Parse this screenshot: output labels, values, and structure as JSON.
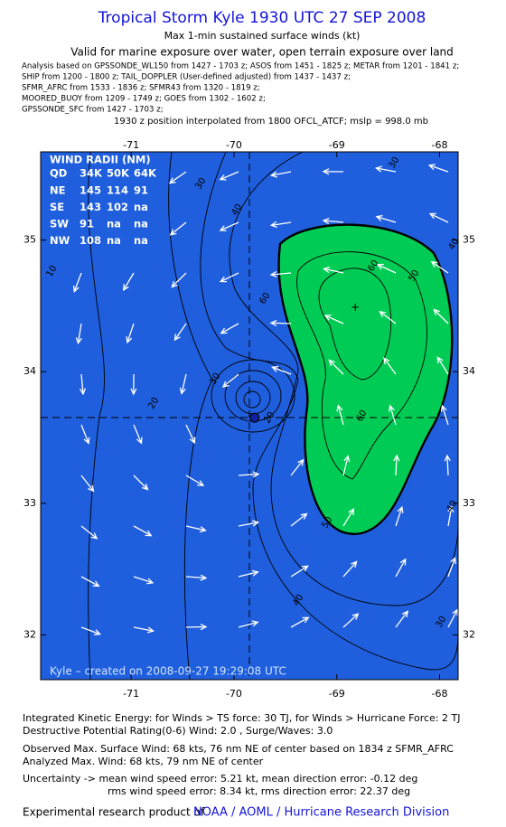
{
  "header": {
    "title": "Tropical Storm Kyle 1930 UTC 27 SEP 2008",
    "subtitle": "Max 1-min sustained surface winds (kt)",
    "validity": "Valid for marine exposure over water, open terrain exposure over land",
    "analysis_lines": [
      "Analysis based on  GPSSONDE_WL150 from 1427 - 1703 z;  ASOS from 1451 - 1825 z;  METAR from 1201 - 1841 z;",
      "SHIP from 1200 - 1800 z;  TAIL_DOPPLER (User-defined adjusted) from 1437 - 1437 z;",
      "SFMR_AFRC from 1533 - 1836 z;  SFMR43 from 1320 - 1819 z;",
      "MOORED_BUOY from 1209 - 1749 z;  GOES from 1302 - 1602 z;",
      "GPSSONDE_SFC from 1427 - 1703 z;"
    ],
    "position_note": "1930 z position interpolated from 1800 OFCL_ATCF; mslp = 998.0 mb"
  },
  "map": {
    "lonlim": [
      -71.88,
      -67.82
    ],
    "latlim": [
      31.66,
      35.67
    ],
    "lon_ticks": [
      -71,
      -70,
      -69,
      -68
    ],
    "lat_ticks": [
      35,
      34,
      33,
      32
    ],
    "center": {
      "lon": -69.8,
      "lat": 33.65
    },
    "max_wind_marker": {
      "lon": -68.82,
      "lat": 34.49
    },
    "contour_labels": [
      "30",
      "40",
      "30",
      "40",
      "60",
      "50",
      "60",
      "20",
      "30",
      "10",
      "20",
      "40",
      "50",
      "60",
      "40",
      "30"
    ],
    "credit": "Kyle – created on 2008-09-27 19:29:08 UTC"
  },
  "wind_radii": {
    "title": "WIND RADII (NM)",
    "header": [
      "QD",
      "34K",
      "50K",
      "64K"
    ],
    "rows": [
      [
        "NE",
        "145",
        "114",
        "91"
      ],
      [
        "SE",
        "143",
        "102",
        "na"
      ],
      [
        "SW",
        "91",
        "na",
        "na"
      ],
      [
        "NW",
        "108",
        "na",
        "na"
      ]
    ]
  },
  "footer": {
    "lines": [
      "Integrated Kinetic Energy:  for Winds > TS force: 30 TJ,  for Winds > Hurricane Force: 2 TJ",
      "Destructive Potential Rating(0-6)   Wind: 2.0 , Surge/Waves: 3.0",
      "Observed Max. Surface Wind: 68 kts, 76 nm NE of center based on 1834 z SFMR_AFRC",
      "Analyzed Max. Wind: 68 kts, 79 nm NE of center",
      "Uncertainty -> mean wind speed error: 5.21 kt,   mean direction error:  -0.12 deg",
      "rms wind speed error: 8.34 kt,   rms direction error: 22.37 deg"
    ],
    "link_prefix": "Experimental research product of",
    "link": "NOAA / AOML / Hurricane Research Division"
  }
}
